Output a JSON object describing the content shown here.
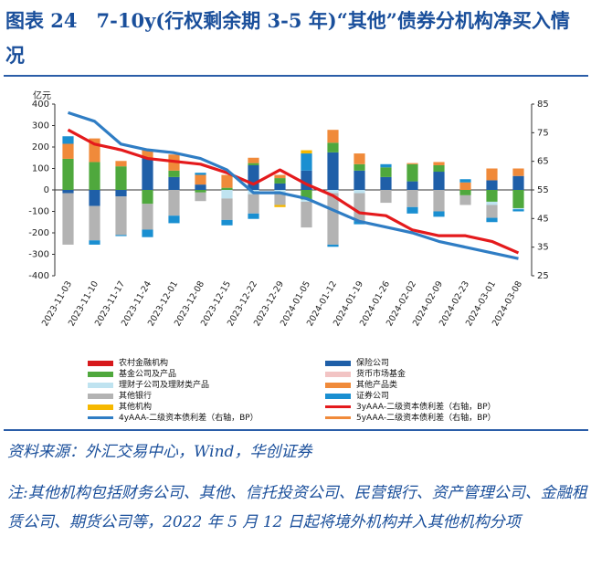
{
  "header": {
    "title": "图表 24　7-10y(行权剩余期 3-5 年)“其他”债券分机构净买入情况"
  },
  "footer": {
    "source": "资料来源：外汇交易中心，Wind，华创证券",
    "note": "注:其他机构包括财务公司、其他、信托投资公司、民营银行、资产管理公司、金融租赁公司、期货公司等，2022 年 5 月 12 日起将境外机构并入其他机构分项"
  },
  "chart_data": {
    "type": "bar",
    "stacked": true,
    "unit_label": "亿元",
    "categories": [
      "2023-11-03",
      "2023-11-10",
      "2023-11-17",
      "2023-11-24",
      "2023-12-01",
      "2023-12-08",
      "2023-12-15",
      "2023-12-22",
      "2023-12-29",
      "2024-01-05",
      "2024-01-12",
      "2024-01-19",
      "2024-01-26",
      "2024-02-02",
      "2024-02-09",
      "2024-02-23",
      "2024-03-01",
      "2024-03-08"
    ],
    "x_tick_labels": [
      "2023-11-03",
      "2023-11-10",
      "2023-11-17",
      "2023-11-24",
      "2023-12-01",
      "2023-12-08",
      "2023-12-15",
      "2023-12-22",
      "2023-12-29",
      "2024-01-05",
      "2024-01-12",
      "2024-01-19",
      "2024-01-26",
      "2024-02-02",
      "2024-02-09",
      "2024-02-23",
      "2024-03-01",
      "2024-03-08"
    ],
    "ylim": [
      -400,
      400
    ],
    "yticks": [
      -400,
      -300,
      -200,
      -100,
      0,
      100,
      200,
      300,
      400
    ],
    "y2lim": [
      25,
      85
    ],
    "y2ticks": [
      25,
      35,
      45,
      55,
      65,
      75,
      85
    ],
    "series": [
      {
        "name": "农村金融机构",
        "color": "#d7191c",
        "kind": "bar",
        "values": [
          0,
          0,
          0,
          0,
          0,
          0,
          0,
          0,
          0,
          0,
          0,
          0,
          0,
          0,
          0,
          0,
          0,
          0
        ]
      },
      {
        "name": "保险公司",
        "color": "#1f5fa8",
        "kind": "bar",
        "values": [
          -15,
          -75,
          -30,
          150,
          60,
          25,
          0,
          115,
          30,
          90,
          175,
          90,
          60,
          40,
          85,
          0,
          45,
          65
        ]
      },
      {
        "name": "基金公司及产品",
        "color": "#4fa83d",
        "kind": "bar",
        "values": [
          145,
          130,
          110,
          -65,
          30,
          -12,
          10,
          10,
          25,
          -45,
          45,
          30,
          45,
          80,
          30,
          -25,
          -55,
          -85
        ]
      },
      {
        "name": "货币市场基金",
        "color": "#f2c4c4",
        "kind": "bar",
        "values": [
          0,
          0,
          0,
          0,
          0,
          0,
          0,
          0,
          0,
          0,
          0,
          0,
          0,
          0,
          0,
          0,
          0,
          0
        ]
      },
      {
        "name": "理财子公司及理财类产品",
        "color": "#bfe3f0",
        "kind": "bar",
        "values": [
          0,
          0,
          0,
          0,
          0,
          0,
          -40,
          -20,
          -15,
          -10,
          -15,
          -15,
          0,
          0,
          0,
          0,
          -15,
          -5
        ]
      },
      {
        "name": "其他产品类",
        "color": "#f08a3a",
        "kind": "bar",
        "values": [
          70,
          110,
          25,
          35,
          75,
          45,
          60,
          25,
          15,
          0,
          60,
          50,
          0,
          5,
          15,
          35,
          55,
          35
        ]
      },
      {
        "name": "其他银行",
        "color": "#b3b3b3",
        "kind": "bar",
        "values": [
          -240,
          -160,
          -180,
          -120,
          -120,
          -40,
          -100,
          -90,
          -55,
          -120,
          -240,
          -130,
          -60,
          -80,
          -100,
          -45,
          -60,
          0
        ]
      },
      {
        "name": "证券公司",
        "color": "#1a8fd1",
        "kind": "bar",
        "values": [
          35,
          -20,
          -5,
          -35,
          -35,
          10,
          -25,
          -25,
          0,
          80,
          -10,
          -15,
          15,
          -30,
          -25,
          15,
          -20,
          -10
        ]
      },
      {
        "name": "其他机构",
        "color": "#f6b800",
        "kind": "bar",
        "values": [
          0,
          0,
          0,
          0,
          0,
          0,
          0,
          0,
          -10,
          15,
          0,
          0,
          0,
          0,
          0,
          0,
          0,
          0
        ]
      },
      {
        "name": "3yAAA-二级资本债利差（右轴，BP）",
        "color": "#e41a1c",
        "kind": "line",
        "axis": "right",
        "values": [
          76,
          71,
          69,
          66,
          65,
          64,
          61,
          57,
          62,
          57,
          53,
          47,
          46,
          41,
          39,
          39,
          37,
          33
        ]
      },
      {
        "name": "4yAAA-二级资本债利差（右轴，BP）",
        "color": "#2f7dc4",
        "kind": "line",
        "axis": "right",
        "values": [
          82,
          79,
          71,
          69,
          68,
          66,
          62,
          54,
          54,
          52,
          48,
          44,
          42,
          40,
          37,
          35,
          33,
          31
        ]
      },
      {
        "name": "5yAAA-二级资本债利差（右轴，BP）",
        "color": "#f08a3a",
        "kind": "line",
        "axis": "right",
        "values": [
          null,
          null,
          null,
          null,
          null,
          null,
          null,
          null,
          null,
          null,
          null,
          null,
          null,
          null,
          null,
          null,
          null,
          null
        ]
      }
    ]
  }
}
